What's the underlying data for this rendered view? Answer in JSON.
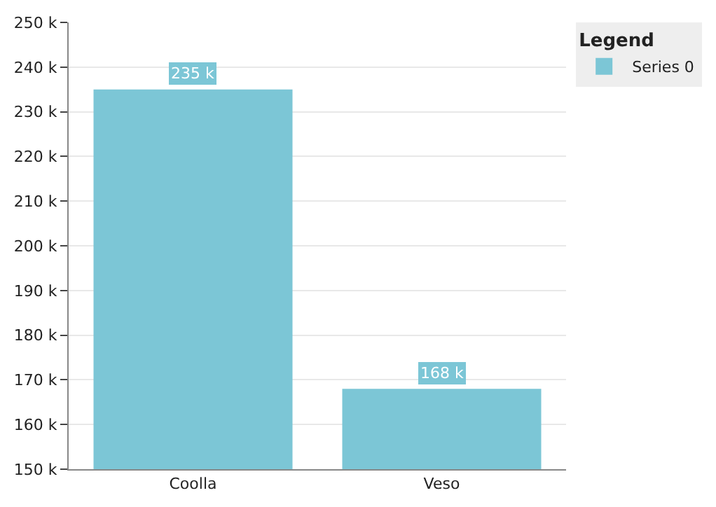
{
  "chart_data": {
    "type": "bar",
    "categories": [
      "Coolla",
      "Veso"
    ],
    "series": [
      {
        "name": "Series 0",
        "color": "#7cc6d6",
        "values": [
          235000,
          168000
        ],
        "value_labels": [
          "235 k",
          "168 k"
        ]
      }
    ],
    "ylim": [
      150000,
      250000
    ],
    "yticks": [
      {
        "value": 150000,
        "label": "150 k"
      },
      {
        "value": 160000,
        "label": "160 k"
      },
      {
        "value": 170000,
        "label": "170 k"
      },
      {
        "value": 180000,
        "label": "180 k"
      },
      {
        "value": 190000,
        "label": "190 k"
      },
      {
        "value": 200000,
        "label": "200 k"
      },
      {
        "value": 210000,
        "label": "210 k"
      },
      {
        "value": 220000,
        "label": "220 k"
      },
      {
        "value": 230000,
        "label": "230 k"
      },
      {
        "value": 240000,
        "label": "240 k"
      },
      {
        "value": 250000,
        "label": "250 k"
      }
    ],
    "grid": "y",
    "legend": "right",
    "legend_title": "Legend"
  }
}
